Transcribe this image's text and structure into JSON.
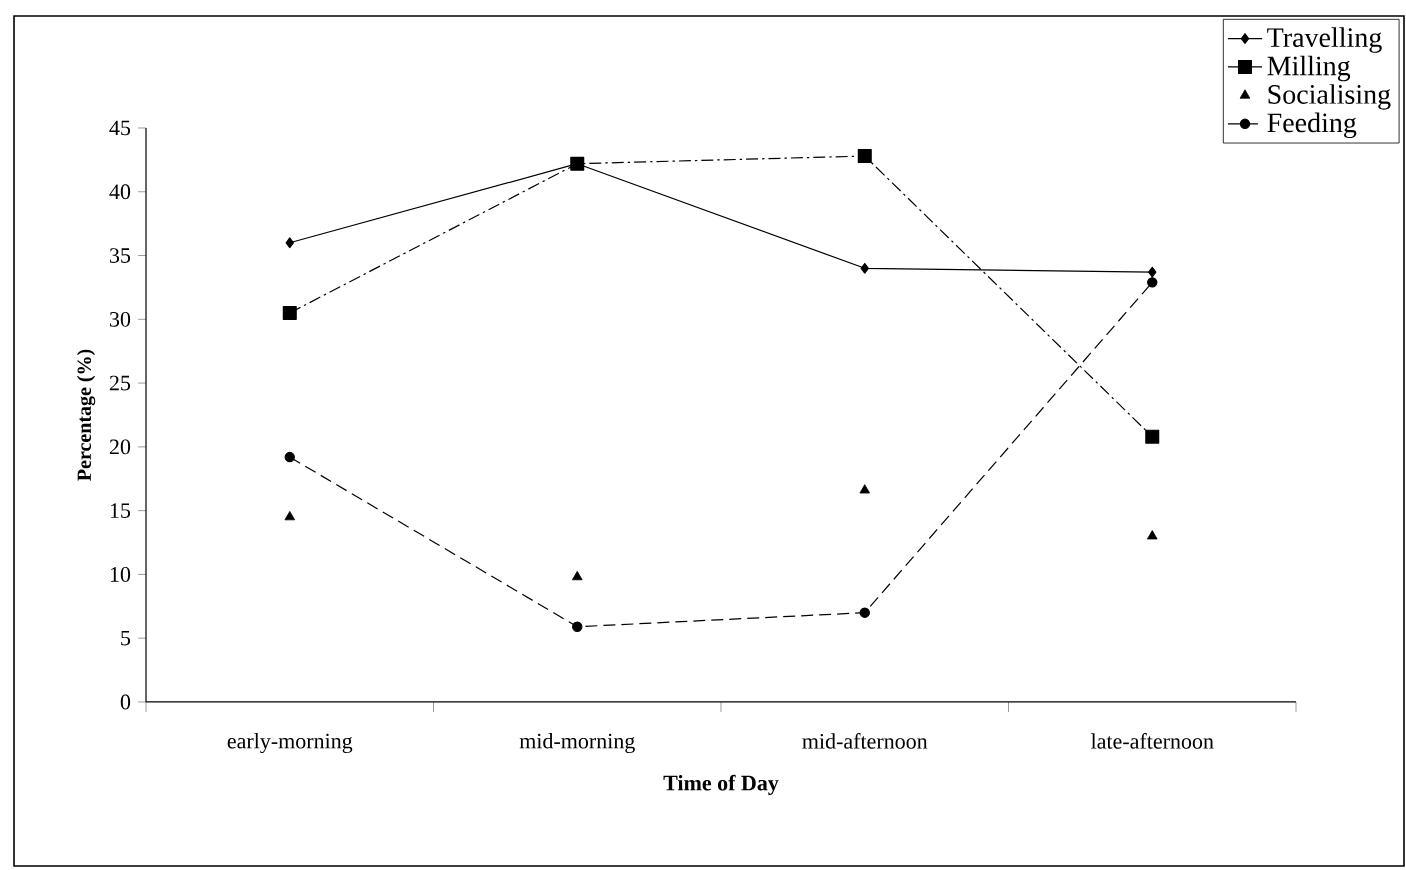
{
  "chart_data": {
    "type": "line",
    "xlabel": "Time of Day",
    "ylabel": "Percentage (%)",
    "categories": [
      "early-morning",
      "mid-morning",
      "mid-afternoon",
      "late-afternoon"
    ],
    "ylim": [
      0,
      45
    ],
    "yticks": [
      0,
      5,
      10,
      15,
      20,
      25,
      30,
      35,
      40,
      45
    ],
    "legend": "top right",
    "series": [
      {
        "name": "Travelling",
        "color": "#000000",
        "marker": "diamond",
        "line_style": "solid",
        "values": [
          36,
          42.2,
          34,
          33.7
        ]
      },
      {
        "name": "Milling",
        "color": "#000000",
        "marker": "square",
        "line_style": "dashdot",
        "values": [
          30.5,
          42.2,
          42.8,
          20.8
        ]
      },
      {
        "name": "Socialising",
        "type": "scatter",
        "color": "#000000",
        "marker": "triangle",
        "values": [
          14.5,
          9.8,
          16.6,
          13
        ]
      },
      {
        "name": "Feeding",
        "color": "#000000",
        "marker": "circle",
        "line_style": "dashed",
        "values": [
          19.2,
          5.9,
          7,
          32.9
        ]
      }
    ]
  }
}
